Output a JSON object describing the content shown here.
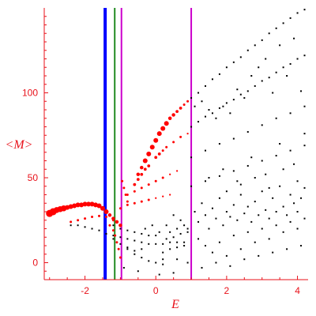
{
  "chart_data": {
    "type": "scatter",
    "title": "",
    "xlabel": "E",
    "ylabel": "<M>",
    "xlim": [
      -3.15,
      4.3
    ],
    "ylim": [
      -10,
      150
    ],
    "xticks": [
      -2,
      0,
      2,
      4
    ],
    "yticks": [
      0,
      50,
      100
    ],
    "grid": false,
    "colors": {
      "axis": "#e8111a",
      "highlight_points": "#ff0000",
      "background_points": "#000000",
      "line_blue": "#0000ff",
      "line_green": "#228b22",
      "line_magenta": "#cc00cc"
    },
    "vertical_lines": [
      {
        "x": -1.43,
        "color": "#0000ff",
        "weight": "thick"
      },
      {
        "x": -1.16,
        "color": "#228b22",
        "weight": "thin"
      },
      {
        "x": -0.97,
        "color": "#cc00cc",
        "weight": "thin"
      },
      {
        "x": 1.0,
        "color": "#cc00cc",
        "weight": "thin"
      }
    ],
    "series": [
      {
        "color": "#ff0000",
        "marker": "sized-by-weight",
        "points": [
          [
            -3.0,
            29,
            6
          ],
          [
            -2.9,
            30,
            6
          ],
          [
            -2.8,
            31,
            5
          ],
          [
            -2.7,
            31.5,
            5
          ],
          [
            -2.6,
            32,
            5
          ],
          [
            -2.5,
            32.5,
            4
          ],
          [
            -2.4,
            33,
            4
          ],
          [
            -2.3,
            33.5,
            4
          ],
          [
            -2.2,
            34,
            4
          ],
          [
            -2.1,
            34,
            4
          ],
          [
            -2.0,
            34.5,
            4
          ],
          [
            -1.9,
            34.5,
            4
          ],
          [
            -1.8,
            34.5,
            4
          ],
          [
            -1.7,
            34,
            4
          ],
          [
            -1.6,
            33.5,
            4
          ],
          [
            -1.5,
            32,
            4
          ],
          [
            -1.4,
            30,
            4
          ],
          [
            -1.3,
            28,
            3
          ],
          [
            -1.2,
            26,
            3
          ],
          [
            -1.1,
            24,
            3
          ],
          [
            -1.0,
            22,
            3
          ],
          [
            -0.5,
            52,
            3
          ],
          [
            -0.4,
            56,
            3
          ],
          [
            -0.3,
            60,
            4
          ],
          [
            -0.2,
            64,
            4
          ],
          [
            -0.1,
            68,
            4
          ],
          [
            0.0,
            72,
            4
          ],
          [
            0.1,
            76,
            4
          ],
          [
            0.2,
            79,
            4
          ],
          [
            0.3,
            82,
            4
          ],
          [
            0.4,
            85,
            3
          ],
          [
            0.5,
            87,
            3
          ],
          [
            0.6,
            89,
            2.5
          ],
          [
            0.7,
            91,
            2.5
          ],
          [
            0.8,
            93,
            2
          ],
          [
            0.9,
            95,
            2
          ],
          [
            -0.6,
            46,
            2.5
          ],
          [
            -0.5,
            49,
            2.5
          ],
          [
            -0.4,
            52,
            2.5
          ],
          [
            -0.3,
            55,
            2.5
          ],
          [
            -0.2,
            57,
            2.5
          ],
          [
            0.0,
            62,
            2.5
          ],
          [
            0.1,
            64,
            2.5
          ],
          [
            0.2,
            66,
            2
          ],
          [
            0.3,
            68,
            2
          ],
          [
            0.5,
            71,
            2
          ],
          [
            0.7,
            74,
            2
          ],
          [
            0.9,
            76,
            1.5
          ],
          [
            -0.8,
            40,
            2
          ],
          [
            -0.6,
            42,
            2
          ],
          [
            -0.4,
            44,
            2
          ],
          [
            -0.2,
            46,
            2
          ],
          [
            0.0,
            48,
            2
          ],
          [
            0.2,
            50,
            2
          ],
          [
            0.4,
            52,
            1.5
          ],
          [
            0.6,
            54,
            1.5
          ],
          [
            -1.0,
            32,
            2
          ],
          [
            -0.8,
            34,
            2
          ],
          [
            -0.6,
            35,
            2
          ],
          [
            -0.4,
            36,
            2
          ],
          [
            -0.2,
            37,
            2
          ],
          [
            0.0,
            38,
            1.5
          ],
          [
            0.2,
            39,
            1.5
          ],
          [
            0.4,
            40,
            1.5
          ],
          [
            -2.4,
            24,
            2
          ],
          [
            -2.2,
            25,
            2
          ],
          [
            -2.0,
            26,
            2
          ],
          [
            -1.8,
            27,
            2
          ],
          [
            -1.6,
            27.5,
            2
          ],
          [
            -1.4,
            27,
            2
          ],
          [
            -1.2,
            25,
            2
          ],
          [
            -1.0,
            22,
            2
          ],
          [
            -1.3,
            22,
            2
          ],
          [
            -1.2,
            19,
            2
          ],
          [
            -1.15,
            16,
            2
          ],
          [
            -1.1,
            12,
            2
          ],
          [
            -1.05,
            8,
            2
          ],
          [
            -1.0,
            3,
            2
          ],
          [
            -0.95,
            48,
            2
          ],
          [
            -0.9,
            44,
            2
          ],
          [
            -0.85,
            40,
            2
          ],
          [
            -0.8,
            36,
            2
          ]
        ]
      },
      {
        "color": "#000000",
        "marker": "dot",
        "points": [
          [
            -2.4,
            22
          ],
          [
            -2.2,
            22
          ],
          [
            -2.0,
            21
          ],
          [
            -1.8,
            20
          ],
          [
            -1.6,
            19
          ],
          [
            -1.4,
            17
          ],
          [
            -1.2,
            16
          ],
          [
            -1.0,
            15
          ],
          [
            -0.8,
            14
          ],
          [
            -0.6,
            13
          ],
          [
            -0.4,
            12
          ],
          [
            -0.2,
            11
          ],
          [
            0.0,
            11
          ],
          [
            0.2,
            11
          ],
          [
            0.4,
            12
          ],
          [
            0.6,
            12
          ],
          [
            0.8,
            12
          ],
          [
            -1.2,
            22
          ],
          [
            -1.0,
            20
          ],
          [
            -0.8,
            19
          ],
          [
            -0.6,
            18
          ],
          [
            -0.4,
            17
          ],
          [
            -0.2,
            16
          ],
          [
            0.0,
            16
          ],
          [
            -0.8,
            8
          ],
          [
            -0.6,
            5
          ],
          [
            -0.4,
            3
          ],
          [
            -0.2,
            1
          ],
          [
            0.0,
            0
          ],
          [
            0.2,
            -1
          ],
          [
            -0.9,
            -3
          ],
          [
            -0.5,
            -5
          ],
          [
            0.1,
            -7
          ],
          [
            0.5,
            -6
          ],
          [
            -1.2,
            14
          ],
          [
            -1.0,
            11
          ],
          [
            -0.8,
            9
          ],
          [
            -0.6,
            7
          ],
          [
            -0.4,
            8
          ],
          [
            0.2,
            6
          ],
          [
            0.4,
            8
          ],
          [
            0.6,
            9
          ],
          [
            0.8,
            10
          ],
          [
            0.4,
            18
          ],
          [
            0.6,
            20
          ],
          [
            0.8,
            22
          ],
          [
            0.3,
            14
          ],
          [
            0.5,
            15
          ],
          [
            0.7,
            17
          ],
          [
            0.9,
            18
          ],
          [
            1.0,
            97
          ],
          [
            1.2,
            100
          ],
          [
            1.4,
            104
          ],
          [
            1.6,
            108
          ],
          [
            1.8,
            111
          ],
          [
            2.0,
            115
          ],
          [
            2.2,
            118
          ],
          [
            2.4,
            121
          ],
          [
            2.6,
            125
          ],
          [
            2.8,
            128
          ],
          [
            3.0,
            131
          ],
          [
            3.2,
            135
          ],
          [
            3.4,
            138
          ],
          [
            3.6,
            141
          ],
          [
            3.8,
            144
          ],
          [
            4.0,
            147
          ],
          [
            4.2,
            149
          ],
          [
            1.0,
            80
          ],
          [
            1.2,
            83
          ],
          [
            1.4,
            86
          ],
          [
            1.6,
            88
          ],
          [
            1.8,
            91
          ],
          [
            2.0,
            94
          ],
          [
            2.2,
            96
          ],
          [
            2.4,
            99
          ],
          [
            2.6,
            101
          ],
          [
            2.8,
            104
          ],
          [
            3.0,
            107
          ],
          [
            3.2,
            109
          ],
          [
            3.4,
            112
          ],
          [
            3.6,
            115
          ],
          [
            3.8,
            117
          ],
          [
            4.0,
            120
          ],
          [
            4.2,
            122
          ],
          [
            1.0,
            62
          ],
          [
            1.4,
            66
          ],
          [
            1.8,
            70
          ],
          [
            2.2,
            73
          ],
          [
            2.6,
            77
          ],
          [
            3.0,
            81
          ],
          [
            3.4,
            85
          ],
          [
            3.8,
            88
          ],
          [
            4.2,
            92
          ],
          [
            1.0,
            45
          ],
          [
            1.4,
            48
          ],
          [
            1.8,
            51
          ],
          [
            2.2,
            54
          ],
          [
            2.6,
            57
          ],
          [
            3.0,
            60
          ],
          [
            3.4,
            63
          ],
          [
            3.8,
            66
          ],
          [
            4.2,
            69
          ],
          [
            1.1,
            92
          ],
          [
            1.3,
            95
          ],
          [
            1.5,
            90
          ],
          [
            1.7,
            85
          ],
          [
            1.9,
            92
          ],
          [
            2.1,
            88
          ],
          [
            2.3,
            102
          ],
          [
            2.5,
            97
          ],
          [
            2.7,
            110
          ],
          [
            2.9,
            115
          ],
          [
            3.1,
            120
          ],
          [
            3.3,
            100
          ],
          [
            3.5,
            128
          ],
          [
            3.7,
            110
          ],
          [
            3.9,
            132
          ],
          [
            4.1,
            101
          ],
          [
            1.1,
            30
          ],
          [
            1.2,
            24
          ],
          [
            1.3,
            35
          ],
          [
            1.4,
            28
          ],
          [
            1.5,
            20
          ],
          [
            1.6,
            32
          ],
          [
            1.7,
            26
          ],
          [
            1.8,
            38
          ],
          [
            1.9,
            22
          ],
          [
            2.0,
            30
          ],
          [
            2.1,
            27
          ],
          [
            2.2,
            34
          ],
          [
            2.3,
            25
          ],
          [
            2.4,
            40
          ],
          [
            2.5,
            29
          ],
          [
            2.6,
            33
          ],
          [
            2.7,
            24
          ],
          [
            2.8,
            36
          ],
          [
            2.9,
            28
          ],
          [
            3.0,
            42
          ],
          [
            3.1,
            31
          ],
          [
            3.2,
            26
          ],
          [
            3.3,
            38
          ],
          [
            3.4,
            30
          ],
          [
            3.5,
            45
          ],
          [
            3.6,
            33
          ],
          [
            3.7,
            28
          ],
          [
            3.8,
            40
          ],
          [
            3.9,
            35
          ],
          [
            4.0,
            30
          ],
          [
            4.1,
            38
          ],
          [
            4.2,
            44
          ],
          [
            1.2,
            14
          ],
          [
            1.4,
            10
          ],
          [
            1.6,
            6
          ],
          [
            1.8,
            12
          ],
          [
            2.0,
            4
          ],
          [
            2.2,
            16
          ],
          [
            2.4,
            8
          ],
          [
            2.6,
            18
          ],
          [
            2.8,
            12
          ],
          [
            3.0,
            20
          ],
          [
            3.2,
            14
          ],
          [
            3.4,
            22
          ],
          [
            3.6,
            18
          ],
          [
            3.8,
            24
          ],
          [
            4.0,
            20
          ],
          [
            4.2,
            26
          ],
          [
            1.3,
            -3
          ],
          [
            1.7,
            0
          ],
          [
            2.1,
            -2
          ],
          [
            2.5,
            2
          ],
          [
            2.9,
            4
          ],
          [
            3.3,
            6
          ],
          [
            3.7,
            8
          ],
          [
            4.1,
            10
          ],
          [
            1.5,
            50
          ],
          [
            1.9,
            55
          ],
          [
            2.3,
            48
          ],
          [
            2.7,
            62
          ],
          [
            3.1,
            52
          ],
          [
            3.5,
            70
          ],
          [
            3.9,
            58
          ],
          [
            4.2,
            76
          ],
          [
            2.0,
            42
          ],
          [
            2.4,
            46
          ],
          [
            2.8,
            50
          ],
          [
            3.2,
            44
          ],
          [
            3.6,
            55
          ],
          [
            4.0,
            48
          ],
          [
            0.9,
            20
          ],
          [
            0.7,
            25
          ],
          [
            0.5,
            28
          ],
          [
            0.3,
            22
          ],
          [
            0.1,
            18
          ],
          [
            -0.1,
            22
          ],
          [
            -0.3,
            20
          ],
          [
            0.2,
            2
          ],
          [
            0.6,
            2
          ],
          [
            0.9,
            0
          ]
        ]
      }
    ]
  }
}
